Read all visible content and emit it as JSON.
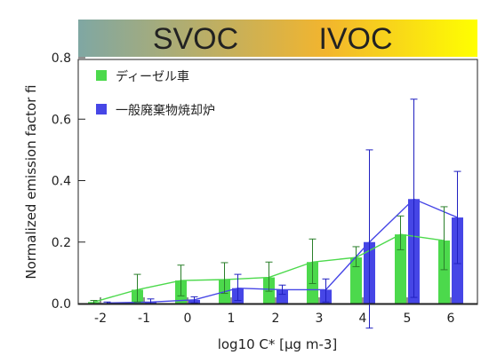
{
  "chart_data": {
    "type": "bar",
    "banner": {
      "labels": [
        "SVOC",
        "IVOC"
      ],
      "gradient_colors": [
        "#7fa7a3",
        "#f2b52e",
        "#ffff00"
      ]
    },
    "categories": [
      "-2",
      "-1",
      "0",
      "1",
      "2",
      "3",
      "4",
      "5",
      "6"
    ],
    "x": [
      -2,
      -1,
      0,
      1,
      2,
      3,
      4,
      5,
      6
    ],
    "yticks": [
      "0.0",
      "0.2",
      "0.4",
      "0.6",
      "0.8"
    ],
    "ylim": [
      0,
      0.8
    ],
    "ylabel": "Normalized emission factor fi",
    "xlabel": "log10 C* [μg m-3]",
    "grid": false,
    "legend_placement": "top-left",
    "series": [
      {
        "name": "ディーゼル車",
        "color": "#4cd94c",
        "values": [
          0.005,
          0.045,
          0.075,
          0.078,
          0.085,
          0.135,
          0.15,
          0.225,
          0.205
        ],
        "err_low": [
          0.005,
          0.04,
          0.05,
          0.045,
          0.045,
          0.07,
          0.03,
          0.05,
          0.095
        ],
        "err_high": [
          0.005,
          0.05,
          0.05,
          0.055,
          0.05,
          0.075,
          0.035,
          0.06,
          0.11
        ]
      },
      {
        "name": "一般廃棄物焼却炉",
        "color": "#4646e6",
        "values": [
          0.002,
          0.005,
          0.012,
          0.05,
          0.045,
          0.045,
          0.2,
          0.34,
          0.28
        ],
        "err_low": [
          0.002,
          0.005,
          0.01,
          0.04,
          0.015,
          0.04,
          0.28,
          0.32,
          0.15
        ],
        "err_high": [
          0.003,
          0.01,
          0.01,
          0.045,
          0.015,
          0.035,
          0.3,
          0.325,
          0.15
        ]
      }
    ]
  }
}
